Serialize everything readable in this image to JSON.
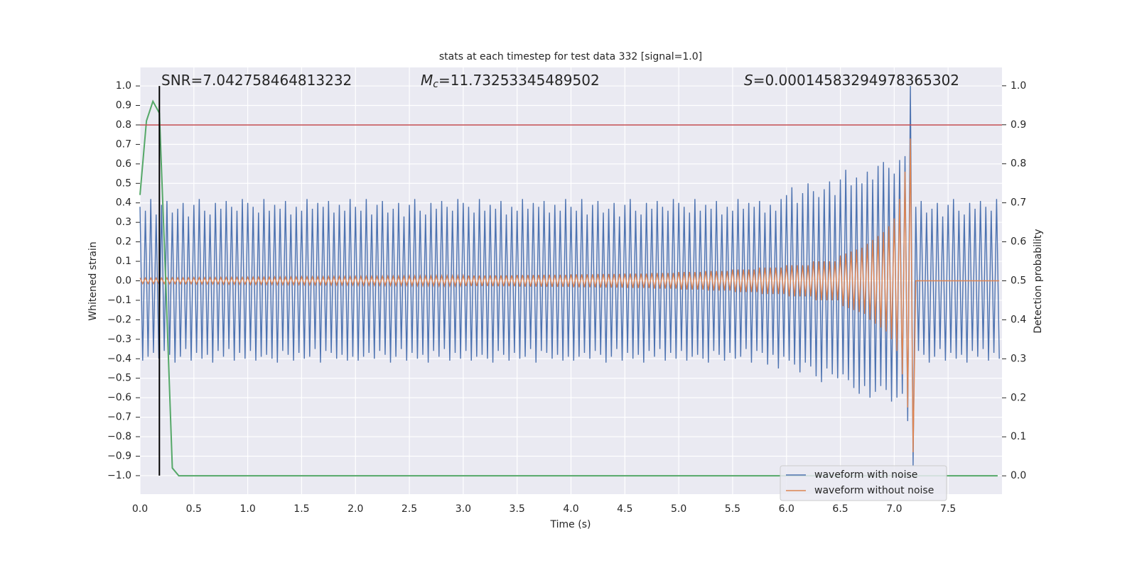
{
  "chart_data": {
    "type": "line",
    "title": "stats at each timestep for test data 332 [signal=1.0]",
    "xlabel": "Time (s)",
    "ylabel": "Whitened strain",
    "y2label": "Detection probability",
    "xlim": [
      0,
      8.0
    ],
    "ylim": [
      -1.095,
      1.095
    ],
    "y2lim": [
      -0.047,
      1.047
    ],
    "xticks": [
      {
        "value": 0,
        "label": "0.0"
      },
      0.5,
      {
        "value": 1,
        "label": "1.0"
      },
      1.5,
      {
        "value": 2,
        "label": "2.0"
      },
      2.5,
      {
        "value": 3,
        "label": "3.0"
      },
      3.5,
      {
        "value": 4,
        "label": "4.0"
      },
      4.5,
      {
        "value": 5,
        "label": "5.0"
      },
      5.5,
      {
        "value": 6,
        "label": "6.0"
      },
      6.5,
      {
        "value": 7,
        "label": "7.0"
      },
      7.5
    ],
    "yticks": [
      {
        "value": 1,
        "label": "1.0"
      },
      0.9,
      0.8,
      0.7,
      0.6,
      0.5,
      0.4,
      0.3,
      0.2,
      0.1,
      {
        "value": 0,
        "label": "0.0"
      },
      {
        "value": -0.1,
        "label": "−0.1"
      },
      {
        "value": -0.2,
        "label": "−0.2"
      },
      {
        "value": -0.3,
        "label": "−0.3"
      },
      {
        "value": -0.4,
        "label": "−0.4"
      },
      {
        "value": -0.5,
        "label": "−0.5"
      },
      {
        "value": -0.6,
        "label": "−0.6"
      },
      {
        "value": -0.7,
        "label": "−0.7"
      },
      {
        "value": -0.8,
        "label": "−0.8"
      },
      {
        "value": -0.9,
        "label": "−0.9"
      },
      {
        "value": -1,
        "label": "−1.0"
      }
    ],
    "y2ticks": [
      {
        "value": 1,
        "label": "1.0"
      },
      0.9,
      0.8,
      0.7,
      0.6,
      0.5,
      0.4,
      0.3,
      0.2,
      0.1,
      {
        "value": 0,
        "label": "0.0"
      }
    ],
    "grid": true,
    "legend": "lower right",
    "annotations": [
      {
        "text": "SNR=7.042758464813232"
      },
      {
        "symbol": "M",
        "sub": "c",
        "text": "=11.73253345489502"
      },
      {
        "symbol": "S",
        "text": "=0.00014583294978365302"
      }
    ],
    "threshold": {
      "y": 0.8,
      "color": "#c44e52"
    },
    "marker": {
      "x": 0.18,
      "ymin": -1,
      "ymax": 1,
      "color": "#000000"
    },
    "probability": {
      "color": "#55a868",
      "axis": "y2",
      "x": [
        0,
        0.06,
        0.12,
        0.18,
        0.24,
        0.3,
        0.36,
        7.96
      ],
      "values": [
        0.72,
        0.91,
        0.96,
        0.93,
        0.49,
        0.02,
        0.0,
        0.0
      ]
    },
    "x": [
      0,
      0.025,
      0.05,
      0.075,
      0.1,
      0.125,
      0.15,
      0.175,
      0.2,
      0.225,
      0.25,
      0.275,
      0.3,
      0.325,
      0.35,
      0.375,
      0.4,
      0.425,
      0.45,
      0.475,
      0.5,
      0.525,
      0.55,
      0.575,
      0.6,
      0.625,
      0.65,
      0.675,
      0.7,
      0.725,
      0.75,
      0.775,
      0.8,
      0.825,
      0.85,
      0.875,
      0.9,
      0.925,
      0.95,
      0.975,
      1,
      1.025,
      1.05,
      1.075,
      1.1,
      1.125,
      1.15,
      1.175,
      1.2,
      1.225,
      1.25,
      1.275,
      1.3,
      1.325,
      1.35,
      1.375,
      1.4,
      1.425,
      1.45,
      1.475,
      1.5,
      1.525,
      1.55,
      1.575,
      1.6,
      1.625,
      1.65,
      1.675,
      1.7,
      1.725,
      1.75,
      1.775,
      1.8,
      1.825,
      1.85,
      1.875,
      1.9,
      1.925,
      1.95,
      1.975,
      2,
      2.025,
      2.05,
      2.075,
      2.1,
      2.125,
      2.15,
      2.175,
      2.2,
      2.225,
      2.25,
      2.275,
      2.3,
      2.325,
      2.35,
      2.375,
      2.4,
      2.425,
      2.45,
      2.475,
      2.5,
      2.525,
      2.55,
      2.575,
      2.6,
      2.625,
      2.65,
      2.675,
      2.7,
      2.725,
      2.75,
      2.775,
      2.8,
      2.825,
      2.85,
      2.875,
      2.9,
      2.925,
      2.95,
      2.975,
      3,
      3.025,
      3.05,
      3.075,
      3.1,
      3.125,
      3.15,
      3.175,
      3.2,
      3.225,
      3.25,
      3.275,
      3.3,
      3.325,
      3.35,
      3.375,
      3.4,
      3.425,
      3.45,
      3.475,
      3.5,
      3.525,
      3.55,
      3.575,
      3.6,
      3.625,
      3.65,
      3.675,
      3.7,
      3.725,
      3.75,
      3.775,
      3.8,
      3.825,
      3.85,
      3.875,
      3.9,
      3.925,
      3.95,
      3.975,
      4,
      4.025,
      4.05,
      4.075,
      4.1,
      4.125,
      4.15,
      4.175,
      4.2,
      4.225,
      4.25,
      4.275,
      4.3,
      4.325,
      4.35,
      4.375,
      4.4,
      4.425,
      4.45,
      4.475,
      4.5,
      4.525,
      4.55,
      4.575,
      4.6,
      4.625,
      4.65,
      4.675,
      4.7,
      4.725,
      4.75,
      4.775,
      4.8,
      4.825,
      4.85,
      4.875,
      4.9,
      4.925,
      4.95,
      4.975,
      5,
      5.025,
      5.05,
      5.075,
      5.1,
      5.125,
      5.15,
      5.175,
      5.2,
      5.225,
      5.25,
      5.275,
      5.3,
      5.325,
      5.35,
      5.375,
      5.4,
      5.425,
      5.45,
      5.475,
      5.5,
      5.525,
      5.55,
      5.575,
      5.6,
      5.625,
      5.65,
      5.675,
      5.7,
      5.725,
      5.75,
      5.775,
      5.8,
      5.825,
      5.85,
      5.875,
      5.9,
      5.925,
      5.95,
      5.975,
      6,
      6.025,
      6.05,
      6.075,
      6.1,
      6.125,
      6.15,
      6.175,
      6.2,
      6.225,
      6.25,
      6.275,
      6.3,
      6.325,
      6.35,
      6.375,
      6.4,
      6.425,
      6.45,
      6.475,
      6.5,
      6.525,
      6.55,
      6.575,
      6.6,
      6.625,
      6.65,
      6.675,
      6.7,
      6.725,
      6.75,
      6.775,
      6.8,
      6.825,
      6.85,
      6.875,
      6.9,
      6.925,
      6.95,
      6.975,
      7,
      7.025,
      7.05,
      7.075,
      7.1,
      7.125,
      7.15,
      7.175,
      7.2,
      7.225,
      7.25,
      7.275,
      7.3,
      7.325,
      7.35,
      7.375,
      7.4,
      7.425,
      7.45,
      7.475,
      7.5,
      7.525,
      7.55,
      7.575,
      7.6,
      7.625,
      7.65,
      7.675,
      7.7,
      7.725,
      7.75,
      7.775,
      7.8,
      7.825,
      7.85,
      7.875,
      7.9,
      7.925,
      7.95,
      7.975
    ],
    "series": [
      {
        "name": "waveform with noise",
        "color": "#4c72b0",
        "values": [
          0.38,
          -0.41,
          0.36,
          -0.39,
          0.42,
          -0.37,
          0.34,
          -0.4,
          0.39,
          -0.36,
          0.41,
          -0.38,
          0.35,
          -0.42,
          0.37,
          -0.39,
          0.4,
          -0.35,
          0.33,
          -0.41,
          0.39,
          -0.37,
          0.42,
          -0.4,
          0.36,
          -0.38,
          0.34,
          -0.42,
          0.4,
          -0.36,
          0.37,
          -0.39,
          0.41,
          -0.35,
          0.38,
          -0.41,
          0.36,
          -0.37,
          0.42,
          -0.4,
          0.4,
          -0.36,
          0.38,
          -0.41,
          0.35,
          -0.39,
          0.42,
          -0.38,
          0.36,
          -0.4,
          0.39,
          -0.42,
          0.37,
          -0.36,
          0.41,
          -0.38,
          0.34,
          -0.41,
          0.38,
          -0.37,
          0.36,
          -0.4,
          0.42,
          -0.39,
          0.37,
          -0.35,
          0.4,
          -0.42,
          0.38,
          -0.36,
          0.41,
          -0.37,
          0.35,
          -0.4,
          0.39,
          -0.38,
          0.36,
          -0.41,
          0.42,
          -0.39,
          0.38,
          -0.41,
          0.36,
          -0.39,
          0.42,
          -0.37,
          0.34,
          -0.4,
          0.39,
          -0.36,
          0.41,
          -0.38,
          0.35,
          -0.42,
          0.37,
          -0.39,
          0.4,
          -0.35,
          0.33,
          -0.41,
          0.39,
          -0.37,
          0.42,
          -0.4,
          0.36,
          -0.38,
          0.34,
          -0.42,
          0.4,
          -0.36,
          0.37,
          -0.39,
          0.41,
          -0.35,
          0.38,
          -0.41,
          0.36,
          -0.37,
          0.42,
          -0.4,
          0.4,
          -0.36,
          0.38,
          -0.41,
          0.35,
          -0.39,
          0.42,
          -0.38,
          0.36,
          -0.4,
          0.39,
          -0.42,
          0.37,
          -0.36,
          0.41,
          -0.38,
          0.34,
          -0.41,
          0.38,
          -0.37,
          0.36,
          -0.4,
          0.42,
          -0.39,
          0.37,
          -0.35,
          0.4,
          -0.42,
          0.38,
          -0.36,
          0.41,
          -0.37,
          0.35,
          -0.4,
          0.39,
          -0.38,
          0.36,
          -0.41,
          0.42,
          -0.39,
          0.38,
          -0.41,
          0.36,
          -0.39,
          0.42,
          -0.37,
          0.34,
          -0.4,
          0.39,
          -0.36,
          0.41,
          -0.38,
          0.35,
          -0.42,
          0.37,
          -0.39,
          0.4,
          -0.35,
          0.33,
          -0.41,
          0.39,
          -0.37,
          0.42,
          -0.4,
          0.36,
          -0.38,
          0.34,
          -0.42,
          0.4,
          -0.36,
          0.37,
          -0.39,
          0.41,
          -0.35,
          0.38,
          -0.41,
          0.36,
          -0.37,
          0.42,
          -0.4,
          0.4,
          -0.36,
          0.38,
          -0.41,
          0.35,
          -0.39,
          0.42,
          -0.38,
          0.36,
          -0.4,
          0.39,
          -0.42,
          0.37,
          -0.36,
          0.41,
          -0.38,
          0.34,
          -0.41,
          0.38,
          -0.37,
          0.36,
          -0.4,
          0.42,
          -0.39,
          0.37,
          -0.35,
          0.4,
          -0.42,
          0.38,
          -0.36,
          0.41,
          -0.37,
          0.35,
          -0.43,
          0.39,
          -0.38,
          0.36,
          -0.45,
          0.42,
          -0.39,
          0.44,
          -0.41,
          0.48,
          -0.43,
          0.4,
          -0.47,
          0.45,
          -0.42,
          0.5,
          -0.44,
          0.46,
          -0.49,
          0.43,
          -0.52,
          0.47,
          -0.45,
          0.51,
          -0.48,
          0.44,
          -0.5,
          0.52,
          -0.48,
          0.57,
          -0.51,
          0.49,
          -0.55,
          0.53,
          -0.58,
          0.5,
          -0.54,
          0.56,
          -0.6,
          0.52,
          -0.57,
          0.59,
          -0.54,
          0.61,
          -0.56,
          0.58,
          -0.62,
          0.55,
          -0.6,
          0.62,
          -0.58,
          0.64,
          -0.72,
          1.0,
          -0.95,
          0.38,
          -0.36,
          0.41,
          -0.38,
          0.35,
          -0.42,
          0.37,
          -0.39,
          0.4,
          -0.35,
          0.33,
          -0.41,
          0.39,
          -0.37,
          0.42,
          -0.4,
          0.36,
          -0.38,
          0.34,
          -0.42,
          0.4,
          -0.36,
          0.37,
          -0.39,
          0.41,
          -0.35,
          0.38,
          -0.41,
          0.36,
          -0.37,
          0.42,
          -0.4
        ]
      },
      {
        "name": "waveform without noise",
        "color": "#dd8452",
        "values": [
          0.015,
          -0.015,
          0.015,
          -0.015,
          0.015,
          -0.015,
          0.015,
          -0.015,
          0.015,
          -0.015,
          0.016,
          -0.016,
          0.016,
          -0.016,
          0.016,
          -0.016,
          0.016,
          -0.016,
          0.016,
          -0.016,
          0.017,
          -0.017,
          0.017,
          -0.017,
          0.017,
          -0.017,
          0.017,
          -0.017,
          0.017,
          -0.017,
          0.018,
          -0.018,
          0.018,
          -0.018,
          0.018,
          -0.018,
          0.018,
          -0.018,
          0.018,
          -0.018,
          0.019,
          -0.019,
          0.019,
          -0.019,
          0.019,
          -0.019,
          0.019,
          -0.019,
          0.019,
          -0.019,
          0.02,
          -0.02,
          0.02,
          -0.02,
          0.02,
          -0.02,
          0.02,
          -0.02,
          0.02,
          -0.02,
          0.021,
          -0.021,
          0.021,
          -0.021,
          0.021,
          -0.021,
          0.021,
          -0.021,
          0.021,
          -0.021,
          0.022,
          -0.022,
          0.022,
          -0.022,
          0.022,
          -0.022,
          0.022,
          -0.022,
          0.022,
          -0.022,
          0.023,
          -0.023,
          0.023,
          -0.023,
          0.023,
          -0.023,
          0.023,
          -0.023,
          0.023,
          -0.023,
          0.024,
          -0.024,
          0.024,
          -0.024,
          0.024,
          -0.024,
          0.024,
          -0.024,
          0.024,
          -0.024,
          0.025,
          -0.025,
          0.025,
          -0.025,
          0.025,
          -0.025,
          0.025,
          -0.025,
          0.025,
          -0.025,
          0.026,
          -0.026,
          0.026,
          -0.026,
          0.026,
          -0.026,
          0.026,
          -0.026,
          0.026,
          -0.026,
          0.027,
          -0.027,
          0.027,
          -0.027,
          0.027,
          -0.027,
          0.027,
          -0.027,
          0.027,
          -0.027,
          0.028,
          -0.028,
          0.028,
          -0.028,
          0.028,
          -0.028,
          0.028,
          -0.028,
          0.028,
          -0.028,
          0.03,
          -0.03,
          0.03,
          -0.03,
          0.03,
          -0.03,
          0.03,
          -0.03,
          0.03,
          -0.03,
          0.031,
          -0.031,
          0.031,
          -0.031,
          0.031,
          -0.031,
          0.031,
          -0.031,
          0.031,
          -0.031,
          0.033,
          -0.033,
          0.033,
          -0.033,
          0.033,
          -0.033,
          0.033,
          -0.033,
          0.033,
          -0.033,
          0.035,
          -0.035,
          0.035,
          -0.035,
          0.035,
          -0.035,
          0.035,
          -0.035,
          0.035,
          -0.035,
          0.037,
          -0.037,
          0.037,
          -0.037,
          0.037,
          -0.037,
          0.037,
          -0.037,
          0.037,
          -0.037,
          0.04,
          -0.04,
          0.04,
          -0.04,
          0.04,
          -0.04,
          0.04,
          -0.04,
          0.04,
          -0.04,
          0.045,
          -0.045,
          0.045,
          -0.045,
          0.045,
          -0.045,
          0.045,
          -0.045,
          0.045,
          -0.045,
          0.05,
          -0.05,
          0.05,
          -0.05,
          0.05,
          -0.05,
          0.05,
          -0.05,
          0.05,
          -0.05,
          0.058,
          -0.058,
          0.058,
          -0.058,
          0.058,
          -0.058,
          0.058,
          -0.058,
          0.058,
          -0.058,
          0.068,
          -0.068,
          0.068,
          -0.068,
          0.068,
          -0.068,
          0.068,
          -0.068,
          0.068,
          -0.068,
          0.08,
          -0.08,
          0.08,
          -0.08,
          0.08,
          -0.08,
          0.08,
          -0.08,
          0.08,
          -0.08,
          0.1,
          -0.1,
          0.1,
          -0.1,
          0.1,
          -0.1,
          0.1,
          -0.1,
          0.1,
          -0.1,
          0.13,
          -0.13,
          0.14,
          -0.14,
          0.15,
          -0.15,
          0.16,
          -0.16,
          0.17,
          -0.17,
          0.19,
          -0.2,
          0.21,
          -0.22,
          0.23,
          -0.24,
          0.25,
          -0.26,
          0.28,
          -0.3,
          0.32,
          -0.36,
          0.42,
          -0.48,
          0.56,
          -0.65,
          0.73,
          -0.88,
          0.0,
          0.0,
          0.0,
          0.0,
          0.0,
          0.0,
          0.0,
          0.0,
          0.0,
          0.0,
          0.0,
          0.0,
          0.0,
          0.0,
          0.0,
          0.0,
          0.0,
          0.0,
          0.0,
          0.0,
          0.0,
          0.0,
          0.0,
          0.0,
          0.0,
          0.0,
          0.0,
          0.0,
          0.0,
          0.0,
          0.0,
          0.0
        ]
      }
    ]
  }
}
